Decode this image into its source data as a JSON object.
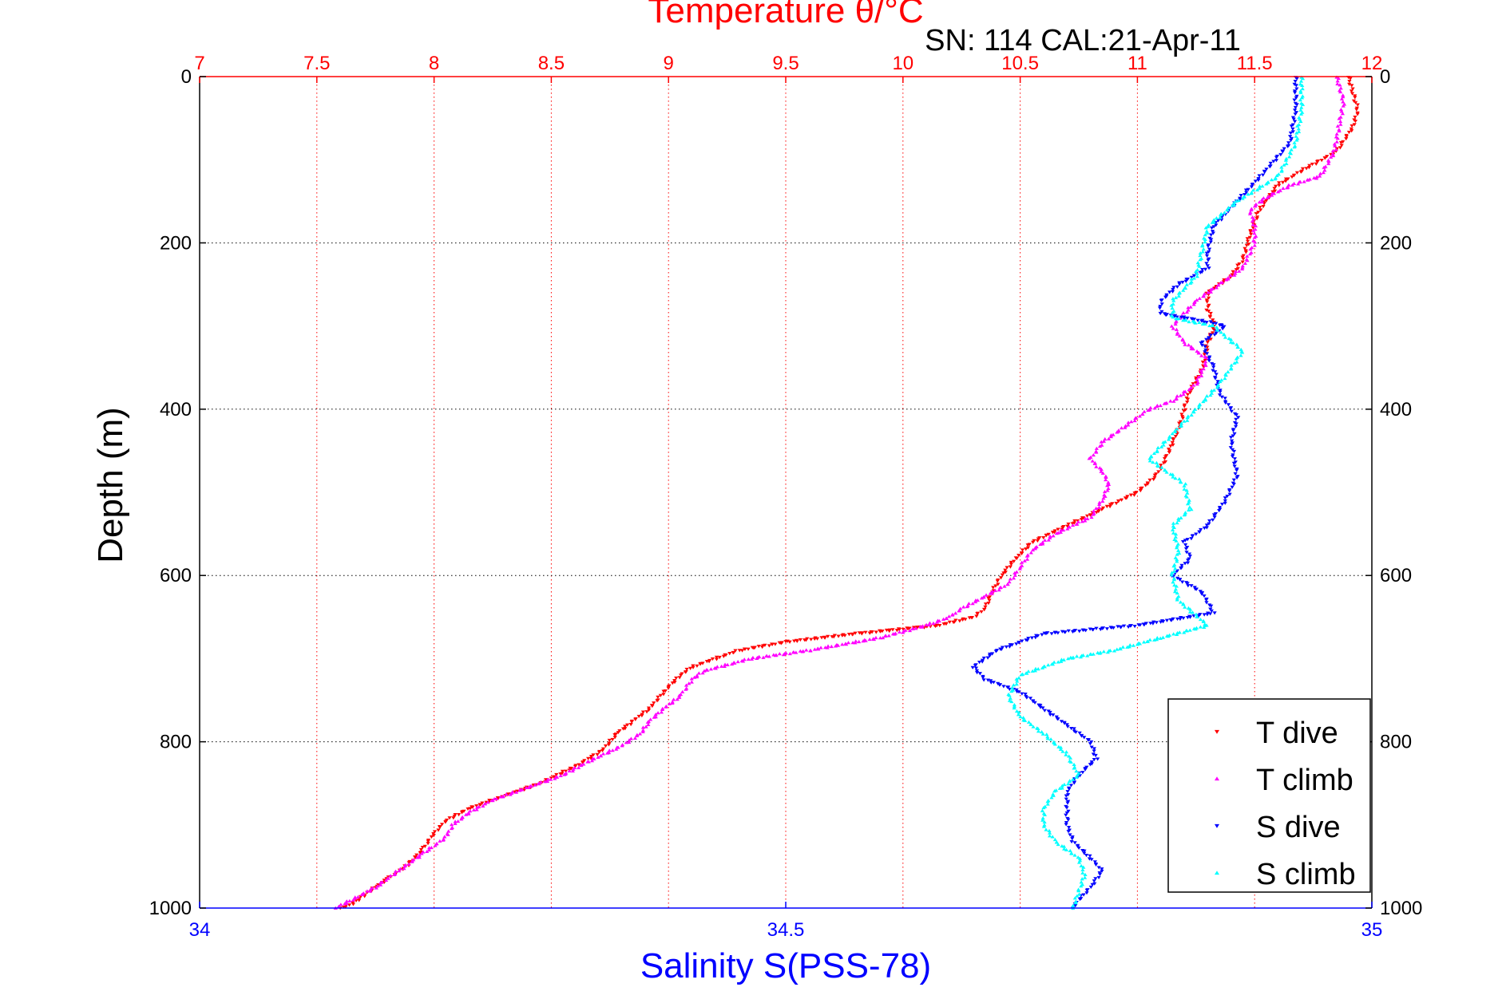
{
  "chart_data": {
    "type": "scatter",
    "title": "SN: 114  CAL:21-Apr-11",
    "top_axis": {
      "label": "Temperature θ/°C",
      "color": "#ff0000",
      "range": [
        7,
        12
      ],
      "ticks": [
        "7",
        "7.5",
        "8",
        "8.5",
        "9",
        "9.5",
        "10",
        "10.5",
        "11",
        "11.5",
        "12"
      ],
      "tick_values": [
        7,
        7.5,
        8,
        8.5,
        9,
        9.5,
        10,
        10.5,
        11,
        11.5,
        12
      ],
      "grid": true
    },
    "bottom_axis": {
      "label": "Salinity S(PSS-78)",
      "color": "#0000ff",
      "range": [
        34,
        35
      ],
      "ticks": [
        "34",
        "34.5",
        "35"
      ],
      "tick_values": [
        34,
        34.5,
        35
      ]
    },
    "y_axis": {
      "label": "Depth (m)",
      "range": [
        0,
        1000
      ],
      "reversed": true,
      "ticks": [
        "0",
        "200",
        "400",
        "600",
        "800",
        "1000"
      ],
      "tick_values": [
        0,
        200,
        400,
        600,
        800,
        1000
      ],
      "grid": true
    },
    "legend": {
      "position": "bottom-right"
    },
    "series": [
      {
        "name": "T dive",
        "axis": "top",
        "color": "#ff0000",
        "marker": "triangle-down",
        "points": [
          [
            11.9,
            0
          ],
          [
            11.92,
            20
          ],
          [
            11.94,
            40
          ],
          [
            11.92,
            60
          ],
          [
            11.85,
            90
          ],
          [
            11.72,
            110
          ],
          [
            11.6,
            130
          ],
          [
            11.52,
            160
          ],
          [
            11.48,
            190
          ],
          [
            11.45,
            220
          ],
          [
            11.4,
            240
          ],
          [
            11.3,
            260
          ],
          [
            11.3,
            280
          ],
          [
            11.33,
            300
          ],
          [
            11.3,
            320
          ],
          [
            11.28,
            350
          ],
          [
            11.22,
            380
          ],
          [
            11.2,
            400
          ],
          [
            11.18,
            420
          ],
          [
            11.15,
            440
          ],
          [
            11.12,
            460
          ],
          [
            11.08,
            480
          ],
          [
            11.0,
            500
          ],
          [
            10.85,
            520
          ],
          [
            10.7,
            540
          ],
          [
            10.55,
            560
          ],
          [
            10.48,
            580
          ],
          [
            10.42,
            600
          ],
          [
            10.38,
            620
          ],
          [
            10.35,
            640
          ],
          [
            10.3,
            650
          ],
          [
            10.15,
            660
          ],
          [
            9.8,
            670
          ],
          [
            9.5,
            680
          ],
          [
            9.3,
            690
          ],
          [
            9.2,
            700
          ],
          [
            9.1,
            710
          ],
          [
            9.05,
            720
          ],
          [
            8.98,
            740
          ],
          [
            8.92,
            760
          ],
          [
            8.85,
            775
          ],
          [
            8.78,
            790
          ],
          [
            8.72,
            810
          ],
          [
            8.6,
            830
          ],
          [
            8.45,
            850
          ],
          [
            8.3,
            865
          ],
          [
            8.15,
            880
          ],
          [
            8.05,
            895
          ],
          [
            8.0,
            910
          ],
          [
            7.95,
            930
          ],
          [
            7.88,
            950
          ],
          [
            7.8,
            965
          ],
          [
            7.75,
            975
          ],
          [
            7.7,
            985
          ],
          [
            7.65,
            995
          ],
          [
            7.6,
            1000
          ]
        ]
      },
      {
        "name": "T climb",
        "axis": "top",
        "color": "#ff00ff",
        "marker": "triangle-up",
        "points": [
          [
            11.85,
            0
          ],
          [
            11.88,
            30
          ],
          [
            11.86,
            60
          ],
          [
            11.84,
            90
          ],
          [
            11.78,
            120
          ],
          [
            11.66,
            130
          ],
          [
            11.55,
            145
          ],
          [
            11.48,
            160
          ],
          [
            11.5,
            180
          ],
          [
            11.5,
            200
          ],
          [
            11.45,
            230
          ],
          [
            11.35,
            250
          ],
          [
            11.25,
            270
          ],
          [
            11.15,
            300
          ],
          [
            11.2,
            320
          ],
          [
            11.3,
            340
          ],
          [
            11.25,
            370
          ],
          [
            11.15,
            390
          ],
          [
            11.05,
            400
          ],
          [
            10.95,
            420
          ],
          [
            10.85,
            440
          ],
          [
            10.8,
            460
          ],
          [
            10.85,
            475
          ],
          [
            10.88,
            490
          ],
          [
            10.85,
            510
          ],
          [
            10.8,
            530
          ],
          [
            10.65,
            550
          ],
          [
            10.55,
            570
          ],
          [
            10.5,
            590
          ],
          [
            10.45,
            610
          ],
          [
            10.35,
            625
          ],
          [
            10.25,
            640
          ],
          [
            10.2,
            650
          ],
          [
            10.1,
            660
          ],
          [
            9.9,
            675
          ],
          [
            9.6,
            690
          ],
          [
            9.35,
            700
          ],
          [
            9.15,
            715
          ],
          [
            9.1,
            725
          ],
          [
            9.05,
            745
          ],
          [
            8.98,
            760
          ],
          [
            8.92,
            775
          ],
          [
            8.88,
            790
          ],
          [
            8.8,
            805
          ],
          [
            8.65,
            825
          ],
          [
            8.55,
            840
          ],
          [
            8.4,
            855
          ],
          [
            8.25,
            870
          ],
          [
            8.15,
            885
          ],
          [
            8.08,
            900
          ],
          [
            8.05,
            915
          ],
          [
            7.95,
            935
          ],
          [
            7.85,
            955
          ],
          [
            7.75,
            975
          ],
          [
            7.65,
            990
          ],
          [
            7.58,
            1000
          ]
        ]
      },
      {
        "name": "S dive",
        "axis": "bottom",
        "color": "#0000ff",
        "marker": "triangle-down",
        "points": [
          [
            34.935,
            0
          ],
          [
            34.935,
            40
          ],
          [
            34.93,
            80
          ],
          [
            34.905,
            120
          ],
          [
            34.885,
            150
          ],
          [
            34.865,
            180
          ],
          [
            34.86,
            210
          ],
          [
            34.86,
            230
          ],
          [
            34.835,
            250
          ],
          [
            34.82,
            270
          ],
          [
            34.82,
            285
          ],
          [
            34.86,
            295
          ],
          [
            34.875,
            300
          ],
          [
            34.855,
            320
          ],
          [
            34.865,
            350
          ],
          [
            34.87,
            380
          ],
          [
            34.885,
            410
          ],
          [
            34.88,
            440
          ],
          [
            34.885,
            480
          ],
          [
            34.875,
            510
          ],
          [
            34.86,
            540
          ],
          [
            34.84,
            560
          ],
          [
            34.845,
            580
          ],
          [
            34.83,
            600
          ],
          [
            34.855,
            620
          ],
          [
            34.865,
            645
          ],
          [
            34.8,
            660
          ],
          [
            34.72,
            670
          ],
          [
            34.68,
            690
          ],
          [
            34.66,
            710
          ],
          [
            34.67,
            725
          ],
          [
            34.7,
            740
          ],
          [
            34.72,
            760
          ],
          [
            34.74,
            780
          ],
          [
            34.76,
            800
          ],
          [
            34.765,
            820
          ],
          [
            34.75,
            840
          ],
          [
            34.74,
            860
          ],
          [
            34.74,
            880
          ],
          [
            34.74,
            900
          ],
          [
            34.745,
            920
          ],
          [
            34.76,
            940
          ],
          [
            34.77,
            955
          ],
          [
            34.76,
            975
          ],
          [
            34.75,
            990
          ],
          [
            34.745,
            1000
          ]
        ]
      },
      {
        "name": "S climb",
        "axis": "bottom",
        "color": "#00ffff",
        "marker": "triangle-up",
        "points": [
          [
            34.94,
            0
          ],
          [
            34.94,
            40
          ],
          [
            34.935,
            80
          ],
          [
            34.92,
            120
          ],
          [
            34.885,
            150
          ],
          [
            34.86,
            180
          ],
          [
            34.855,
            210
          ],
          [
            34.85,
            240
          ],
          [
            34.83,
            270
          ],
          [
            34.83,
            290
          ],
          [
            34.865,
            300
          ],
          [
            34.89,
            330
          ],
          [
            34.87,
            370
          ],
          [
            34.85,
            400
          ],
          [
            34.83,
            430
          ],
          [
            34.81,
            460
          ],
          [
            34.84,
            490
          ],
          [
            34.845,
            520
          ],
          [
            34.83,
            540
          ],
          [
            34.835,
            570
          ],
          [
            34.83,
            600
          ],
          [
            34.835,
            630
          ],
          [
            34.86,
            660
          ],
          [
            34.82,
            675
          ],
          [
            34.78,
            690
          ],
          [
            34.74,
            700
          ],
          [
            34.7,
            720
          ],
          [
            34.69,
            745
          ],
          [
            34.7,
            770
          ],
          [
            34.72,
            790
          ],
          [
            34.74,
            815
          ],
          [
            34.75,
            840
          ],
          [
            34.73,
            860
          ],
          [
            34.72,
            880
          ],
          [
            34.72,
            900
          ],
          [
            34.73,
            920
          ],
          [
            34.75,
            940
          ],
          [
            34.755,
            960
          ],
          [
            34.75,
            980
          ],
          [
            34.745,
            1000
          ]
        ]
      }
    ]
  }
}
